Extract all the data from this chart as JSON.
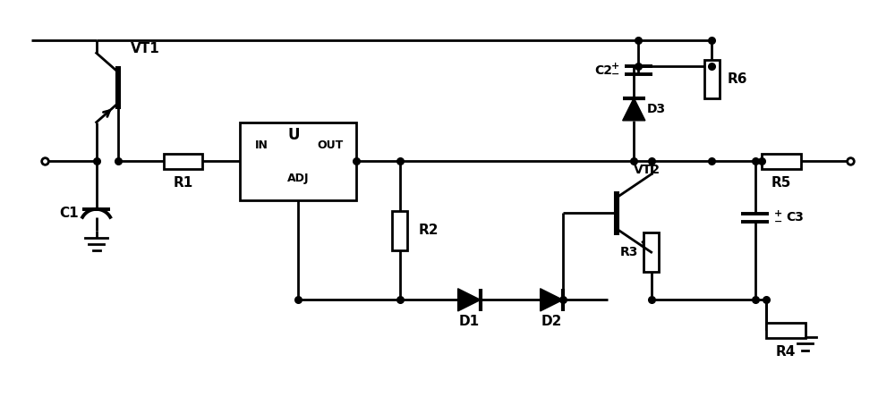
{
  "bg_color": "#ffffff",
  "line_color": "#000000",
  "lw": 2.0,
  "fig_width": 10.0,
  "fig_height": 4.44,
  "dpi": 100,
  "xlim": [
    0,
    100
  ],
  "ylim": [
    0,
    44.4
  ]
}
